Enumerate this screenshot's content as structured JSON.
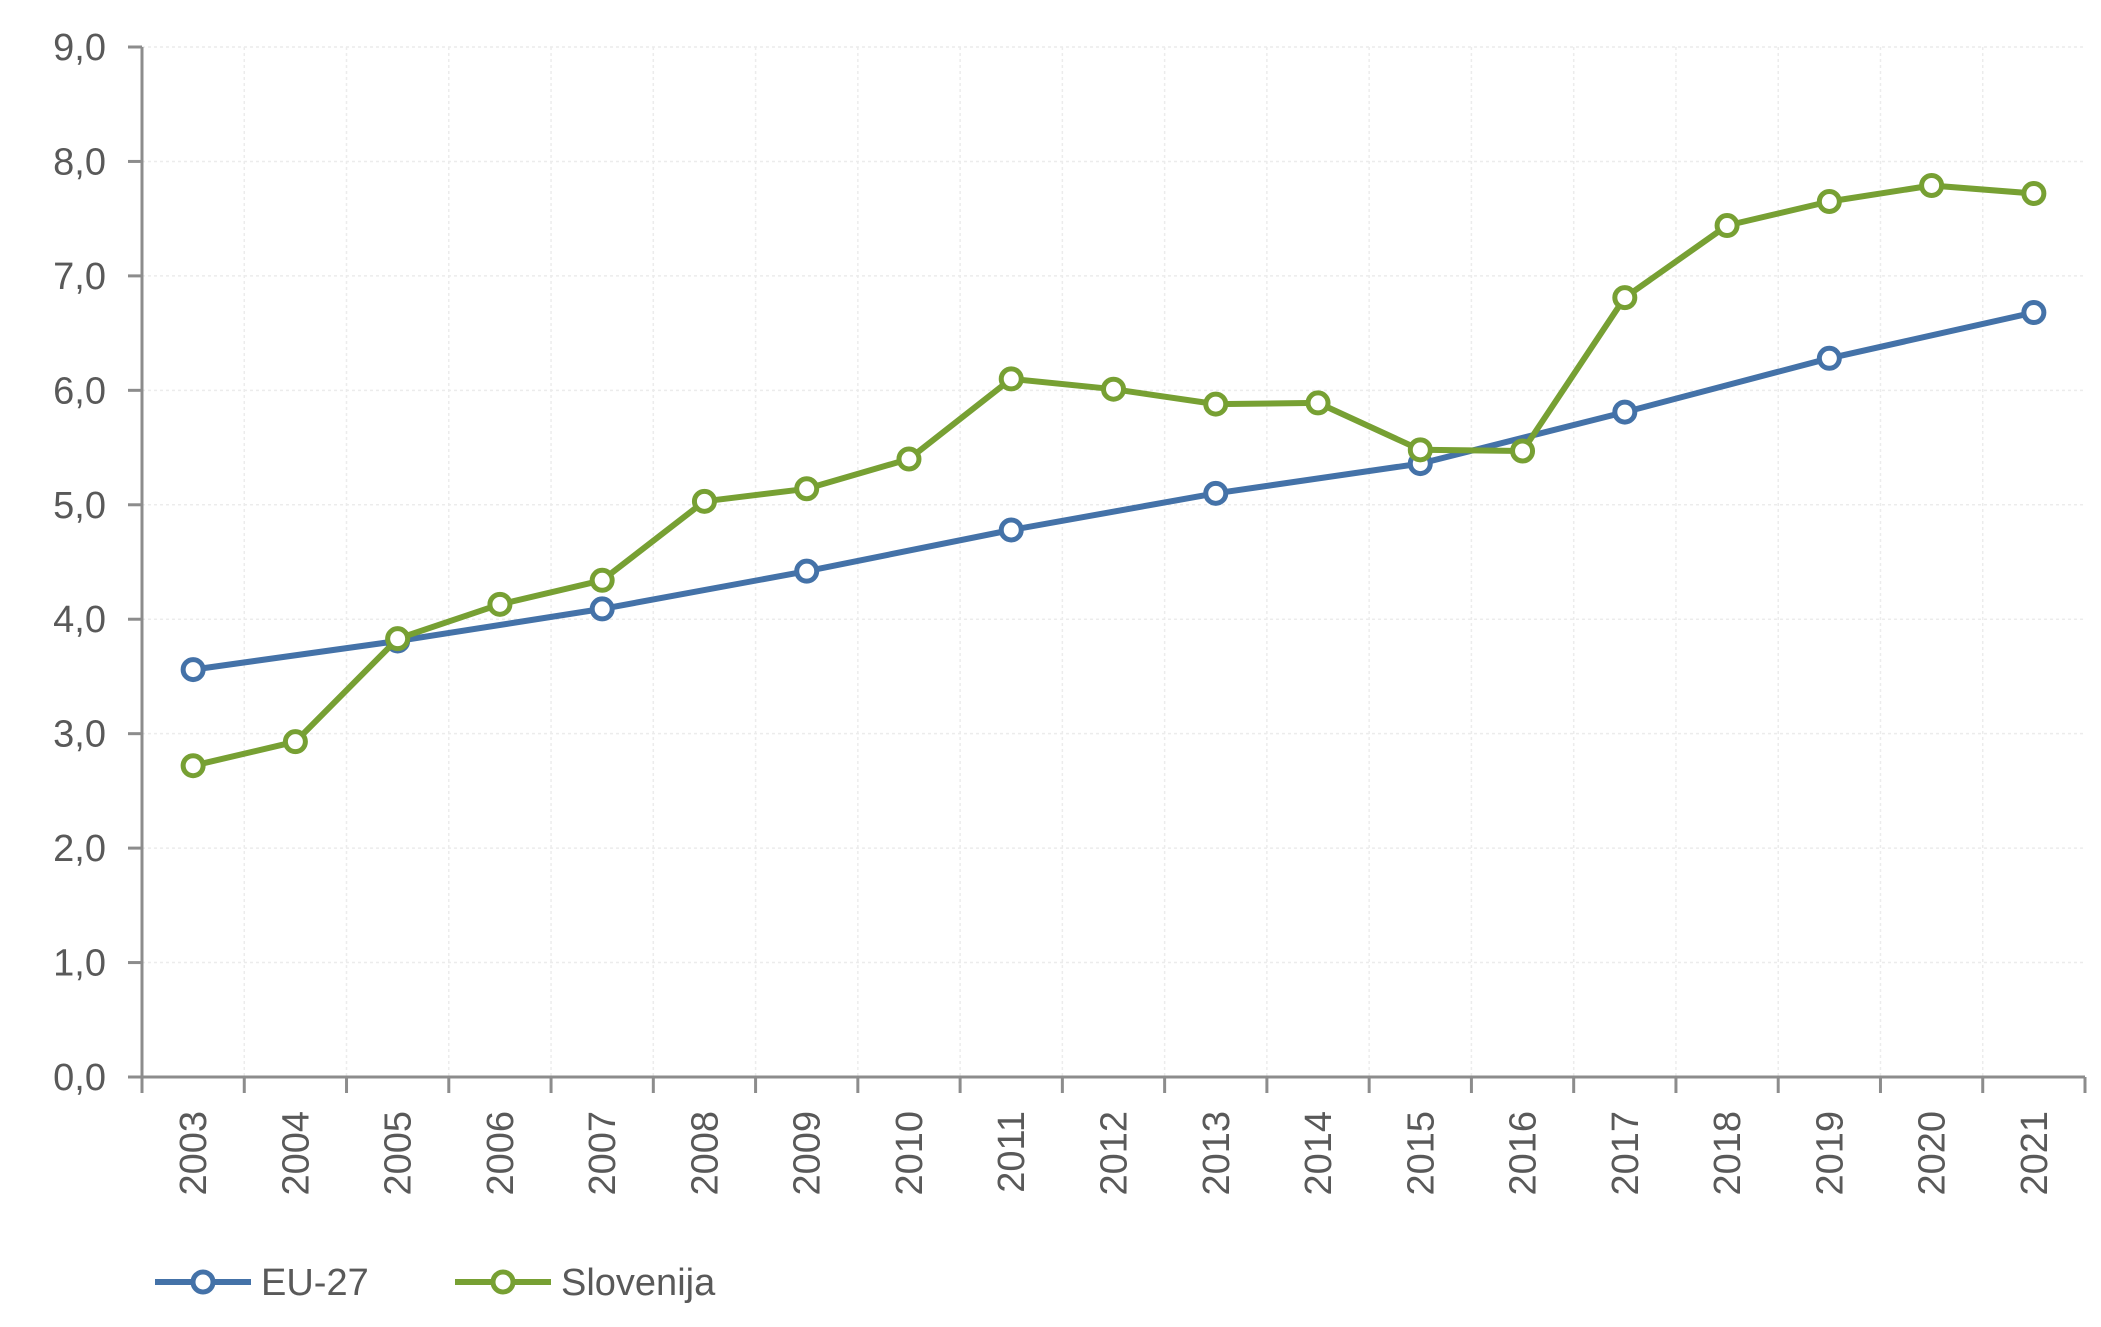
{
  "chart_data": {
    "type": "line",
    "title": "",
    "xlabel": "",
    "ylabel": "",
    "x": [
      "2003",
      "2004",
      "2005",
      "2006",
      "2007",
      "2008",
      "2009",
      "2010",
      "2011",
      "2012",
      "2013",
      "2014",
      "2015",
      "2016",
      "2017",
      "2018",
      "2019",
      "2020",
      "2021"
    ],
    "ylim": [
      0,
      9
    ],
    "y_ticks": [
      "0,0",
      "1,0",
      "2,0",
      "3,0",
      "4,0",
      "5,0",
      "6,0",
      "7,0",
      "8,0",
      "9,0"
    ],
    "grid": true,
    "legend_position": "bottom-left",
    "series": [
      {
        "name": "EU-27",
        "color": "#4472a8",
        "marker": "open-circle",
        "values": [
          3.56,
          null,
          3.81,
          null,
          4.09,
          null,
          4.42,
          null,
          4.78,
          null,
          5.1,
          null,
          5.36,
          null,
          5.81,
          null,
          6.28,
          null,
          6.68
        ]
      },
      {
        "name": "Slovenija",
        "color": "#77a033",
        "marker": "open-circle",
        "values": [
          2.72,
          2.93,
          3.83,
          4.13,
          4.34,
          5.03,
          5.14,
          5.4,
          6.1,
          6.01,
          5.88,
          5.89,
          5.48,
          5.47,
          6.81,
          7.44,
          7.65,
          7.79,
          7.72
        ]
      }
    ]
  }
}
